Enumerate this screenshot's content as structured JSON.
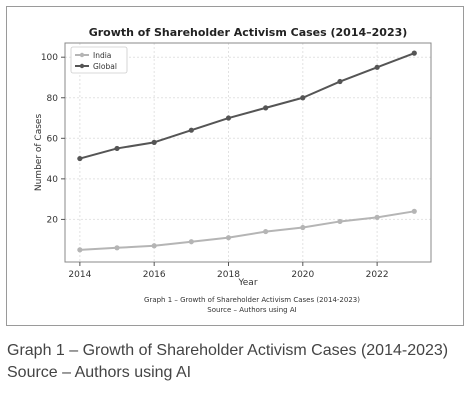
{
  "chart_data": {
    "type": "line",
    "title": "Growth of Shareholder Activism Cases (2014–2023)",
    "xlabel": "Year",
    "ylabel": "Number of Cases",
    "x": [
      2014,
      2015,
      2016,
      2017,
      2018,
      2019,
      2020,
      2021,
      2022,
      2023
    ],
    "xticks": [
      2014,
      2016,
      2018,
      2020,
      2022
    ],
    "yticks": [
      20,
      40,
      60,
      80,
      100
    ],
    "xlim": [
      2013.6,
      2023.45
    ],
    "ylim": [
      -1,
      107
    ],
    "grid": true,
    "legend_position": "top-left",
    "series": [
      {
        "name": "India",
        "color": "#b5b5b5",
        "values": [
          5,
          6,
          7,
          9,
          11,
          14,
          16,
          19,
          21,
          24
        ]
      },
      {
        "name": "Global",
        "color": "#555555",
        "values": [
          50,
          55,
          58,
          64,
          70,
          75,
          80,
          88,
          95,
          102
        ]
      }
    ],
    "inner_caption": [
      "Graph 1 – Growth of Shareholder Activism Cases (2014-2023)",
      "Source – Authors using AI"
    ]
  },
  "caption": {
    "line1": "Graph 1 – Growth of Shareholder Activism Cases (2014-2023)",
    "line2": "Source – Authors using AI"
  }
}
